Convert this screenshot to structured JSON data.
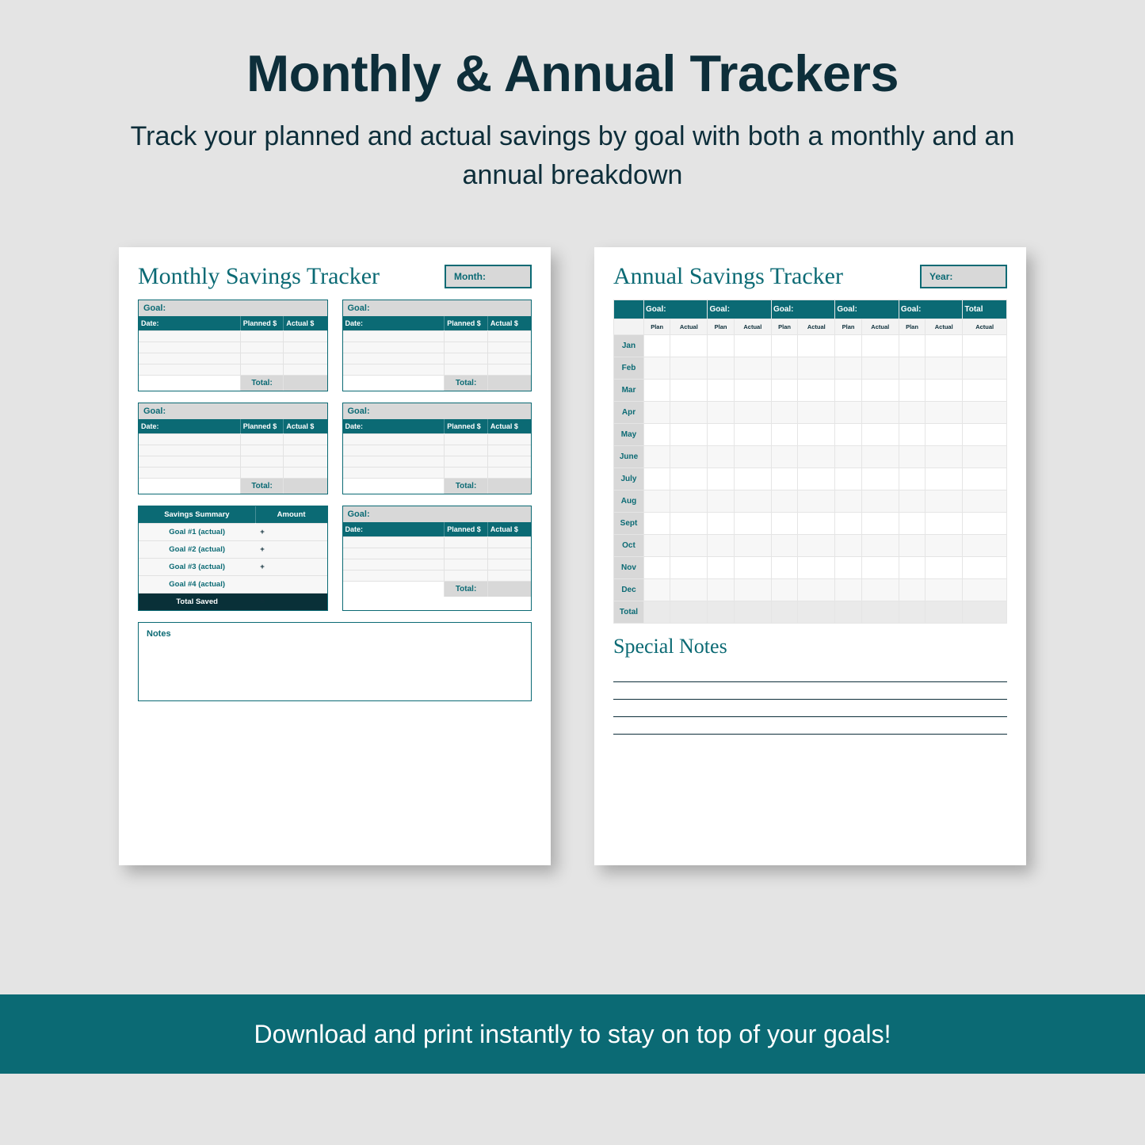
{
  "colors": {
    "background": "#e4e4e4",
    "text_dark": "#0d2e3a",
    "teal": "#0b6a74",
    "teal_dark": "#093038",
    "page_bg": "#ffffff",
    "box_grey": "#d8d8d8",
    "row_grey": "#f7f7f7"
  },
  "hero": {
    "title": "Monthly & Annual Trackers",
    "subtitle": "Track your planned and actual savings by goal with both a monthly and an annual breakdown"
  },
  "monthly": {
    "title": "Monthly Savings Tracker",
    "period_label": "Month:",
    "goal_label": "Goal:",
    "col_date": "Date:",
    "col_planned": "Planned $",
    "col_actual": "Actual $",
    "total_label": "Total:",
    "blank_rows": 4,
    "cards_count": 5,
    "summary": {
      "header_left": "Savings Summary",
      "header_right": "Amount",
      "rows": [
        {
          "label": "Goal #1 (actual)",
          "op": "+"
        },
        {
          "label": "Goal #2 (actual)",
          "op": "+"
        },
        {
          "label": "Goal #3 (actual)",
          "op": "+"
        },
        {
          "label": "Goal #4 (actual)",
          "op": ""
        }
      ],
      "total_label": "Total Saved",
      "total_op": "="
    },
    "notes_label": "Notes"
  },
  "annual": {
    "title": "Annual Savings Tracker",
    "period_label": "Year:",
    "goal_header": "Goal:",
    "total_header": "Total",
    "goal_count": 5,
    "sub_plan": "Plan",
    "sub_actual": "Actual",
    "months": [
      "Jan",
      "Feb",
      "Mar",
      "Apr",
      "May",
      "June",
      "July",
      "Aug",
      "Sept",
      "Oct",
      "Nov",
      "Dec"
    ],
    "total_row_label": "Total",
    "special_notes_title": "Special Notes",
    "note_line_count": 4
  },
  "banner": {
    "text": "Download and print instantly to stay on top of your goals!"
  }
}
